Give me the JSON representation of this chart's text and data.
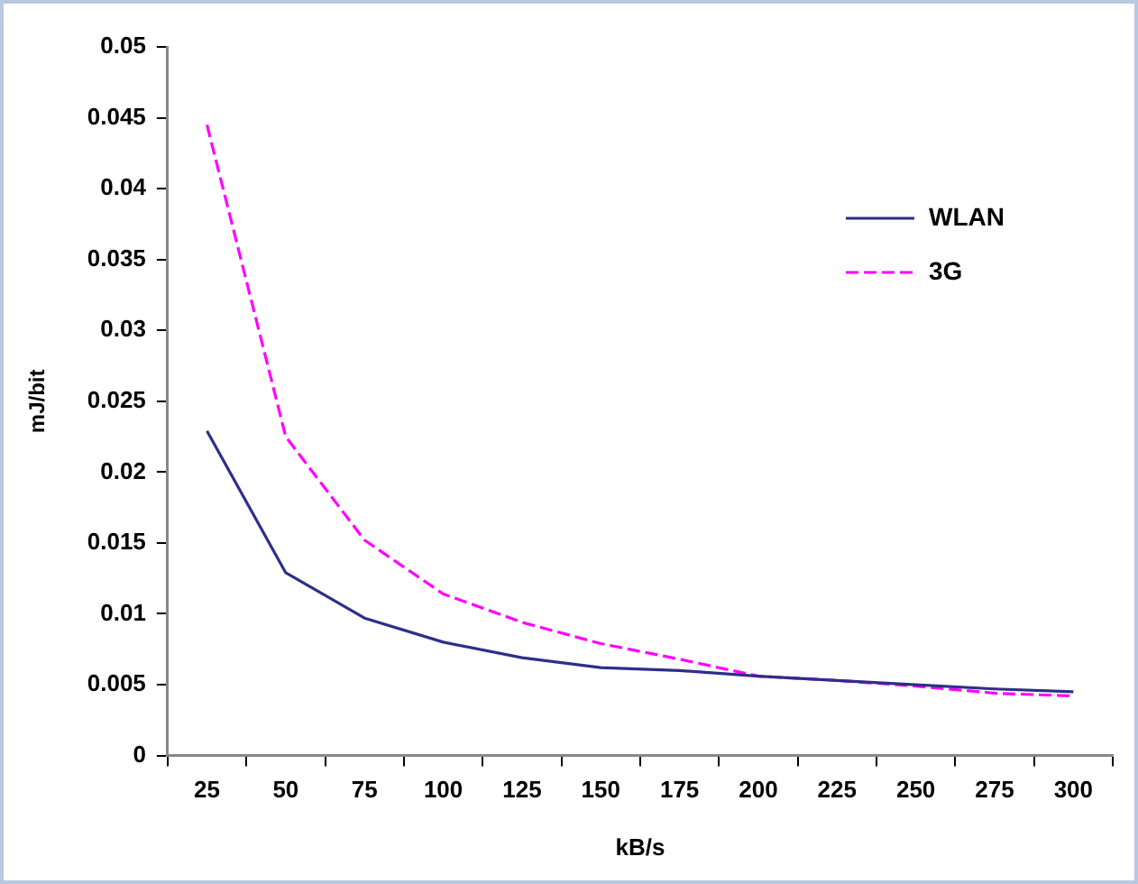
{
  "chart_data": {
    "type": "line",
    "xlabel": "kB/s",
    "ylabel": "mJ/bit",
    "categories": [
      "25",
      "50",
      "75",
      "100",
      "125",
      "150",
      "175",
      "200",
      "225",
      "250",
      "275",
      "300"
    ],
    "series": [
      {
        "name": "WLAN",
        "color": "#2e2e8a",
        "line_style": "solid",
        "values": [
          0.0229,
          0.0129,
          0.0097,
          0.008,
          0.0069,
          0.0062,
          0.006,
          0.0056,
          0.0053,
          0.005,
          0.0047,
          0.0045
        ]
      },
      {
        "name": "3G",
        "color": "#ff00ff",
        "line_style": "dashed",
        "values": [
          0.0445,
          0.0225,
          0.0152,
          0.0114,
          0.0094,
          0.0079,
          0.0068,
          0.0056,
          0.0053,
          0.0049,
          0.0044,
          0.0042
        ]
      }
    ],
    "ylim": [
      0,
      0.05
    ],
    "yticks": [
      0,
      0.005,
      0.01,
      0.015,
      0.02,
      0.025,
      0.03,
      0.035,
      0.04,
      0.045,
      0.05
    ],
    "grid": false,
    "legend": "top right",
    "marker": "none"
  }
}
